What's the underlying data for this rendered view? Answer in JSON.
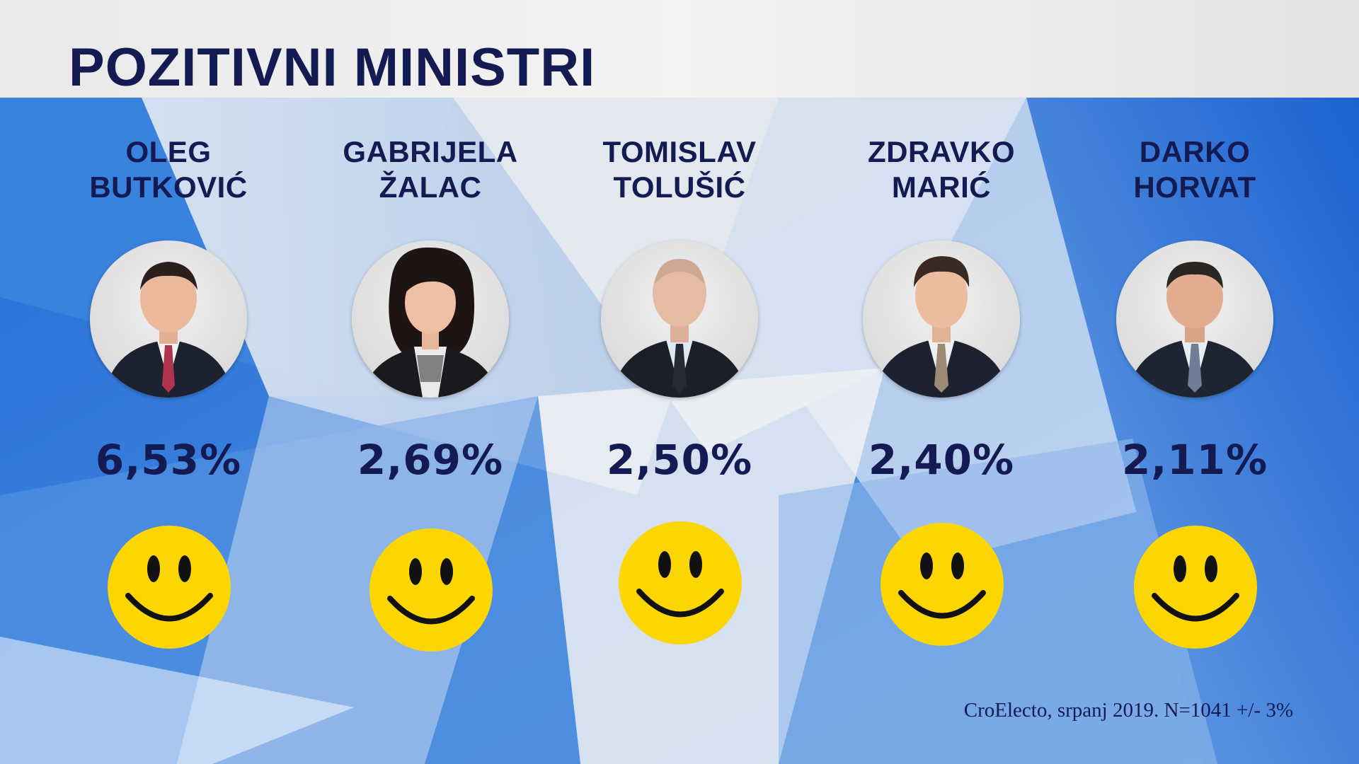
{
  "title": "POZITIVNI MINISTRI",
  "ministers": [
    {
      "first_name": "OLEG",
      "last_name": "BUTKOVIĆ",
      "percent": "6,53%",
      "tie_color": "#b0344e"
    },
    {
      "first_name": "GABRIJELA",
      "last_name": "ŽALAC",
      "percent": "2,69%",
      "tie_color": ""
    },
    {
      "first_name": "TOMISLAV",
      "last_name": "TOLUŠIĆ",
      "percent": "2,50%",
      "tie_color": "#262a36"
    },
    {
      "first_name": "ZDRAVKO",
      "last_name": "MARIĆ",
      "percent": "2,40%",
      "tie_color": "#9c8a74"
    },
    {
      "first_name": "DARKO",
      "last_name": "HORVAT",
      "percent": "2,11%",
      "tie_color": "#6f7e96"
    }
  ],
  "source": "CroElecto, srpanj 2019. N=1041 +/- 3%",
  "colors": {
    "title_text": "#141a52",
    "smiley_face": "#fcd603",
    "background_blue": "#2a74d8"
  },
  "icons": [
    "portrait-photo",
    "smiley-face-icon"
  ]
}
